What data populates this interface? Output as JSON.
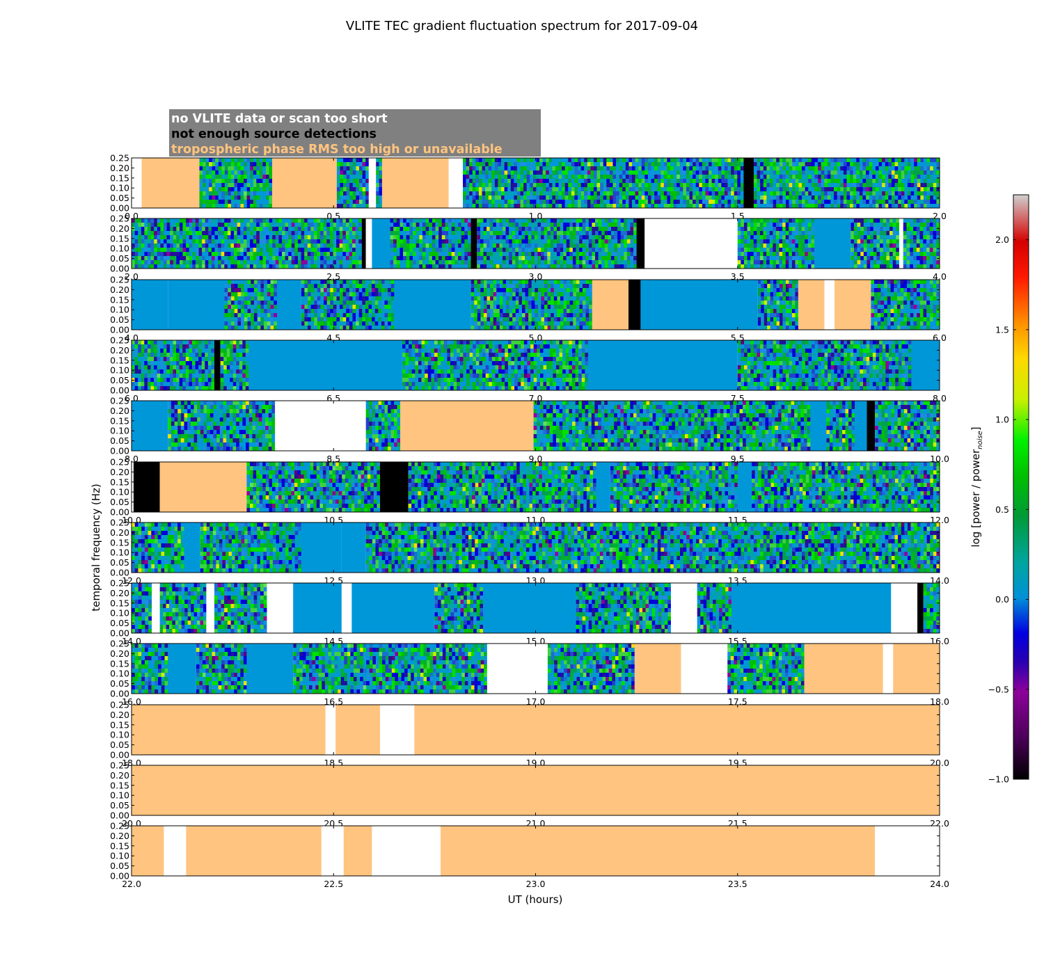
{
  "chart_data": {
    "type": "heatmap",
    "title": "VLITE TEC gradient fluctuation spectrum for 2017-09-04",
    "xlabel": "UT (hours)",
    "ylabel": "temporal frequency (Hz)",
    "ylim": [
      0,
      0.25
    ],
    "yticks": [
      "0.00",
      "0.05",
      "0.10",
      "0.15",
      "0.20",
      "0.25"
    ],
    "colorbar": {
      "label_main": "log [power / power",
      "label_sub": "noise",
      "label_end": "]",
      "range": [
        -1.0,
        2.25
      ],
      "ticks": [
        "−1.0",
        "−0.5",
        "0.0",
        "0.5",
        "1.0",
        "1.5",
        "2.0"
      ]
    },
    "legend": [
      {
        "label": "no VLITE data or scan too short",
        "text_color": "#ffffff"
      },
      {
        "label": "not enough source detections",
        "text_color": "#000000"
      },
      {
        "label": "tropospheric phase RMS too high or unavailable",
        "text_color": "#ffc47f"
      }
    ],
    "flag_colors": {
      "white": "#ffffff",
      "black": "#000000",
      "orange": "#ffc47f",
      "noise": "#0097d9"
    },
    "panels": [
      {
        "xrange": [
          0,
          2
        ],
        "xticks": [
          "0.0",
          "0.5",
          "1.0",
          "1.5",
          "2.0"
        ],
        "segments": [
          [
            "white",
            0,
            0.025
          ],
          [
            "orange",
            0.025,
            0.168
          ],
          [
            "data",
            0.168,
            0.348
          ],
          [
            "noise",
            0.348,
            0.348
          ],
          [
            "orange",
            0.348,
            0.508
          ],
          [
            "data",
            0.508,
            0.587
          ],
          [
            "white",
            0.587,
            0.605
          ],
          [
            "data",
            0.605,
            0.62
          ],
          [
            "orange",
            0.62,
            0.785
          ],
          [
            "white",
            0.785,
            0.82
          ],
          [
            "data",
            0.82,
            1.515
          ],
          [
            "black",
            1.515,
            1.54
          ],
          [
            "data",
            1.54,
            2.0
          ]
        ]
      },
      {
        "xrange": [
          2,
          4
        ],
        "xticks": [
          "2.0",
          "2.5",
          "3.0",
          "3.5",
          "4.0"
        ],
        "segments": [
          [
            "data",
            2.0,
            2.57
          ],
          [
            "black",
            2.57,
            2.58
          ],
          [
            "white",
            2.58,
            2.595
          ],
          [
            "noise",
            2.595,
            2.64
          ],
          [
            "data",
            2.64,
            2.84
          ],
          [
            "black",
            2.84,
            2.855
          ],
          [
            "data",
            2.855,
            3.25
          ],
          [
            "black",
            3.25,
            3.27
          ],
          [
            "white",
            3.27,
            3.5
          ],
          [
            "data",
            3.5,
            3.69
          ],
          [
            "noise",
            3.69,
            3.78
          ],
          [
            "data",
            3.78,
            3.9
          ],
          [
            "white",
            3.9,
            3.91
          ],
          [
            "data",
            3.91,
            4.0
          ]
        ]
      },
      {
        "xrange": [
          4,
          6
        ],
        "xticks": [
          "4.0",
          "4.5",
          "5.0",
          "5.5",
          "6.0"
        ],
        "segments": [
          [
            "noise",
            4.0,
            4.09
          ],
          [
            "noise",
            4.09,
            4.23
          ],
          [
            "data",
            4.23,
            4.36
          ],
          [
            "noise",
            4.36,
            4.42
          ],
          [
            "data",
            4.42,
            4.65
          ],
          [
            "noise",
            4.65,
            4.84
          ],
          [
            "data",
            4.84,
            5.14
          ],
          [
            "orange",
            5.14,
            5.23
          ],
          [
            "black",
            5.23,
            5.26
          ],
          [
            "noise",
            5.26,
            5.55
          ],
          [
            "data",
            5.55,
            5.65
          ],
          [
            "orange",
            5.65,
            5.715
          ],
          [
            "white",
            5.715,
            5.74
          ],
          [
            "orange",
            5.74,
            5.83
          ],
          [
            "data",
            5.83,
            6.0
          ]
        ]
      },
      {
        "xrange": [
          6,
          8
        ],
        "xticks": [
          "6.0",
          "6.5",
          "7.0",
          "7.5",
          "8.0"
        ],
        "segments": [
          [
            "data",
            6.0,
            6.205
          ],
          [
            "black",
            6.205,
            6.22
          ],
          [
            "data",
            6.22,
            6.29
          ],
          [
            "noise",
            6.29,
            6.67
          ],
          [
            "data",
            6.67,
            7.13
          ],
          [
            "noise",
            7.13,
            7.5
          ],
          [
            "data",
            7.5,
            7.93
          ],
          [
            "noise",
            7.93,
            8.0
          ]
        ]
      },
      {
        "xrange": [
          8,
          10
        ],
        "xticks": [
          "8.0",
          "8.5",
          "9.0",
          "9.5",
          "10.0"
        ],
        "segments": [
          [
            "noise",
            8.0,
            8.09
          ],
          [
            "data",
            8.09,
            8.355
          ],
          [
            "white",
            8.355,
            8.58
          ],
          [
            "data",
            8.58,
            8.665
          ],
          [
            "orange",
            8.665,
            8.995
          ],
          [
            "data",
            8.995,
            9.68
          ],
          [
            "noise",
            9.68,
            9.72
          ],
          [
            "data",
            9.72,
            9.79
          ],
          [
            "noise",
            9.79,
            9.82
          ],
          [
            "black",
            9.82,
            9.84
          ],
          [
            "data",
            9.84,
            10.0
          ]
        ]
      },
      {
        "xrange": [
          10,
          12
        ],
        "xticks": [
          "10.0",
          "10.5",
          "11.0",
          "11.5",
          "12.0"
        ],
        "segments": [
          [
            "black",
            10.005,
            10.07
          ],
          [
            "orange",
            10.07,
            10.285
          ],
          [
            "data",
            10.285,
            10.615
          ],
          [
            "black",
            10.615,
            10.685
          ],
          [
            "data",
            10.685,
            11.15
          ],
          [
            "noise",
            11.15,
            11.185
          ],
          [
            "data",
            11.185,
            11.5
          ],
          [
            "noise",
            11.5,
            11.535
          ],
          [
            "data",
            11.535,
            12.0
          ]
        ]
      },
      {
        "xrange": [
          12,
          14
        ],
        "xticks": [
          "12.0",
          "12.5",
          "13.0",
          "13.5",
          "14.0"
        ],
        "segments": [
          [
            "data",
            12.0,
            12.13
          ],
          [
            "noise",
            12.13,
            12.17
          ],
          [
            "data",
            12.17,
            12.42
          ],
          [
            "noise",
            12.42,
            12.52
          ],
          [
            "noise",
            12.52,
            12.58
          ],
          [
            "data",
            12.58,
            14.0
          ]
        ]
      },
      {
        "xrange": [
          14,
          16
        ],
        "xticks": [
          "14.0",
          "14.5",
          "15.0",
          "15.5",
          "16.0"
        ],
        "segments": [
          [
            "data",
            14.0,
            14.05
          ],
          [
            "white",
            14.05,
            14.07
          ],
          [
            "data",
            14.07,
            14.185
          ],
          [
            "white",
            14.185,
            14.205
          ],
          [
            "data",
            14.205,
            14.335
          ],
          [
            "white",
            14.335,
            14.4
          ],
          [
            "noise",
            14.4,
            14.52
          ],
          [
            "white",
            14.52,
            14.545
          ],
          [
            "noise",
            14.545,
            14.75
          ],
          [
            "data",
            14.75,
            14.87
          ],
          [
            "noise",
            14.87,
            15.1
          ],
          [
            "data",
            15.1,
            15.335
          ],
          [
            "white",
            15.335,
            15.4
          ],
          [
            "data",
            15.4,
            15.485
          ],
          [
            "noise",
            15.485,
            15.88
          ],
          [
            "white",
            15.88,
            15.945
          ],
          [
            "black",
            15.945,
            15.96
          ],
          [
            "data",
            15.96,
            16.0
          ]
        ]
      },
      {
        "xrange": [
          16,
          18
        ],
        "xticks": [
          "16.0",
          "16.5",
          "17.0",
          "17.5",
          "18.0"
        ],
        "segments": [
          [
            "data",
            16.0,
            16.09
          ],
          [
            "noise",
            16.09,
            16.16
          ],
          [
            "data",
            16.16,
            16.285
          ],
          [
            "noise",
            16.285,
            16.4
          ],
          [
            "data",
            16.4,
            16.88
          ],
          [
            "white",
            16.88,
            17.03
          ],
          [
            "data",
            17.03,
            17.245
          ],
          [
            "orange",
            17.245,
            17.36
          ],
          [
            "white",
            17.36,
            17.475
          ],
          [
            "data",
            17.475,
            17.665
          ],
          [
            "orange",
            17.665,
            17.86
          ],
          [
            "white",
            17.86,
            17.885
          ],
          [
            "orange",
            17.885,
            18.0
          ]
        ]
      },
      {
        "xrange": [
          18,
          20
        ],
        "xticks": [
          "18.0",
          "18.5",
          "19.0",
          "19.5",
          "20.0"
        ],
        "segments": [
          [
            "orange",
            18.0,
            18.48
          ],
          [
            "white",
            18.48,
            18.505
          ],
          [
            "orange",
            18.505,
            18.615
          ],
          [
            "white",
            18.615,
            18.7
          ],
          [
            "orange",
            18.7,
            20.0
          ]
        ]
      },
      {
        "xrange": [
          20,
          22
        ],
        "xticks": [
          "20.0",
          "20.5",
          "21.0",
          "21.5",
          "22.0"
        ],
        "segments": [
          [
            "orange",
            20.0,
            22.0
          ]
        ]
      },
      {
        "xrange": [
          22,
          24
        ],
        "xticks": [
          "22.0",
          "22.5",
          "23.0",
          "23.5",
          "24.0"
        ],
        "segments": [
          [
            "orange",
            22.0,
            22.08
          ],
          [
            "white",
            22.08,
            22.135
          ],
          [
            "orange",
            22.135,
            22.47
          ],
          [
            "white",
            22.47,
            22.525
          ],
          [
            "orange",
            22.525,
            22.595
          ],
          [
            "white",
            22.595,
            22.765
          ],
          [
            "orange",
            22.765,
            23.84
          ],
          [
            "white",
            23.84,
            24.0
          ]
        ]
      }
    ]
  }
}
